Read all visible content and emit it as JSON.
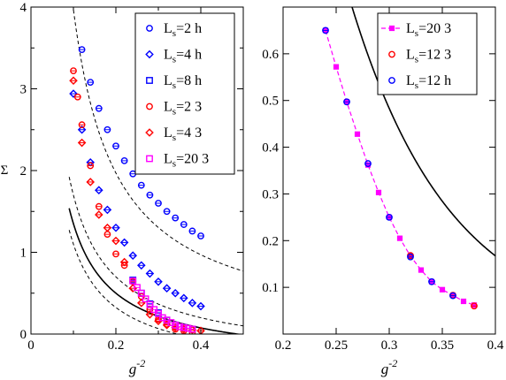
{
  "chart_data": [
    {
      "type": "scatter",
      "panel": "left",
      "xlabel_base": "g",
      "xlabel_exp": "-2",
      "ylabel": "Σ",
      "xlim": [
        0,
        0.5
      ],
      "ylim": [
        0,
        4
      ],
      "xticks": [
        0,
        0.2,
        0.4
      ],
      "xticks_minor": [
        0.1,
        0.3,
        0.5
      ],
      "yticks": [
        0,
        1,
        2,
        3,
        4
      ],
      "yticks_minor": [
        0.5,
        1.5,
        2.5,
        3.5
      ],
      "tick_labels_x": [
        "0",
        "0.2",
        "0.4"
      ],
      "tick_labels_y": [
        "0",
        "1",
        "2",
        "3",
        "4"
      ],
      "legend_position": "top-right",
      "series": [
        {
          "name_main": "L",
          "name_sub": "s",
          "name_rest": "=2 h",
          "marker": "circle",
          "color": "#0000ff",
          "x": [
            0.12,
            0.14,
            0.16,
            0.18,
            0.2,
            0.22,
            0.24,
            0.26,
            0.28,
            0.3,
            0.32,
            0.34,
            0.36,
            0.38,
            0.4
          ],
          "y": [
            3.48,
            3.08,
            2.76,
            2.5,
            2.3,
            2.12,
            1.96,
            1.82,
            1.7,
            1.6,
            1.5,
            1.42,
            1.34,
            1.26,
            1.2
          ]
        },
        {
          "name_main": "L",
          "name_sub": "s",
          "name_rest": "=4 h",
          "marker": "diamond",
          "color": "#0000ff",
          "x": [
            0.1,
            0.12,
            0.14,
            0.16,
            0.18,
            0.2,
            0.22,
            0.24,
            0.26,
            0.28,
            0.3,
            0.32,
            0.34,
            0.36,
            0.38,
            0.4
          ],
          "y": [
            2.94,
            2.5,
            2.1,
            1.76,
            1.52,
            1.3,
            1.12,
            0.96,
            0.84,
            0.74,
            0.64,
            0.56,
            0.5,
            0.44,
            0.38,
            0.34
          ]
        },
        {
          "name_main": "L",
          "name_sub": "s",
          "name_rest": "=8 h",
          "marker": "square",
          "color": "#0000ff",
          "x": [
            0.24,
            0.26,
            0.28,
            0.3,
            0.32,
            0.34,
            0.36,
            0.38
          ],
          "y": [
            0.66,
            0.5,
            0.37,
            0.26,
            0.17,
            0.11,
            0.08,
            0.06
          ]
        },
        {
          "name_main": "L",
          "name_sub": "s",
          "name_rest": "=2 3",
          "marker": "circle",
          "color": "#ff0000",
          "x": [
            0.1,
            0.11,
            0.12,
            0.14,
            0.16,
            0.18,
            0.2,
            0.22,
            0.24,
            0.26,
            0.28,
            0.3,
            0.32,
            0.34,
            0.36,
            0.38
          ],
          "y": [
            3.22,
            2.9,
            2.56,
            2.06,
            1.56,
            1.22,
            0.98,
            0.84,
            0.64,
            0.46,
            0.3,
            0.18,
            0.12,
            0.06,
            0.04,
            0.02
          ]
        },
        {
          "name_main": "L",
          "name_sub": "s",
          "name_rest": "=4 3",
          "marker": "diamond",
          "color": "#ff0000",
          "x": [
            0.1,
            0.12,
            0.14,
            0.16,
            0.18,
            0.2,
            0.22,
            0.24,
            0.26,
            0.28,
            0.3,
            0.32,
            0.34,
            0.36,
            0.38,
            0.4
          ],
          "y": [
            3.1,
            2.34,
            1.86,
            1.46,
            1.3,
            1.14,
            0.88,
            0.56,
            0.38,
            0.24,
            0.16,
            0.11,
            0.08,
            0.06,
            0.05,
            0.04
          ]
        },
        {
          "name_main": "L",
          "name_sub": "s",
          "name_rest": "=20 3",
          "marker": "square",
          "color": "#ff00ff",
          "x": [
            0.24,
            0.25,
            0.26,
            0.27,
            0.28,
            0.29,
            0.3,
            0.31,
            0.32,
            0.33,
            0.34,
            0.35,
            0.36,
            0.37,
            0.38
          ],
          "y": [
            0.65,
            0.57,
            0.5,
            0.43,
            0.36,
            0.3,
            0.25,
            0.2,
            0.17,
            0.14,
            0.11,
            0.09,
            0.08,
            0.07,
            0.06
          ]
        }
      ]
    },
    {
      "type": "scatter",
      "panel": "right",
      "xlabel_base": "g",
      "xlabel_exp": "-2",
      "ylabel": "",
      "xlim": [
        0.2,
        0.4
      ],
      "ylim": [
        0,
        0.7
      ],
      "xticks": [
        0.2,
        0.25,
        0.3,
        0.35,
        0.4
      ],
      "yticks": [
        0.1,
        0.2,
        0.3,
        0.4,
        0.5,
        0.6
      ],
      "tick_labels_x": [
        "0.2",
        "0.25",
        "0.3",
        "0.35",
        "0.4"
      ],
      "tick_labels_y": [
        "0.1",
        "0.2",
        "0.3",
        "0.4",
        "0.5",
        "0.6"
      ],
      "legend_position": "top-right",
      "series": [
        {
          "name_main": "L",
          "name_sub": "s",
          "name_rest": "=20 3",
          "marker": "square-line",
          "color": "#ff00ff",
          "x": [
            0.24,
            0.25,
            0.26,
            0.27,
            0.28,
            0.29,
            0.3,
            0.31,
            0.32,
            0.33,
            0.34,
            0.35,
            0.36,
            0.37,
            0.38
          ],
          "y": [
            0.65,
            0.572,
            0.497,
            0.428,
            0.362,
            0.303,
            0.25,
            0.205,
            0.167,
            0.137,
            0.112,
            0.095,
            0.083,
            0.07,
            0.062
          ]
        },
        {
          "name_main": "L",
          "name_sub": "s",
          "name_rest": "=12 3",
          "marker": "circle",
          "color": "#ff0000",
          "x": [
            0.32,
            0.36,
            0.38
          ],
          "y": [
            0.168,
            0.083,
            0.06
          ]
        },
        {
          "name_main": "L",
          "name_sub": "s",
          "name_rest": "=12 h",
          "marker": "circle",
          "color": "#0000ff",
          "x": [
            0.24,
            0.26,
            0.28,
            0.3,
            0.32,
            0.34,
            0.36
          ],
          "y": [
            0.65,
            0.497,
            0.365,
            0.25,
            0.165,
            0.112,
            0.082
          ]
        }
      ]
    }
  ]
}
